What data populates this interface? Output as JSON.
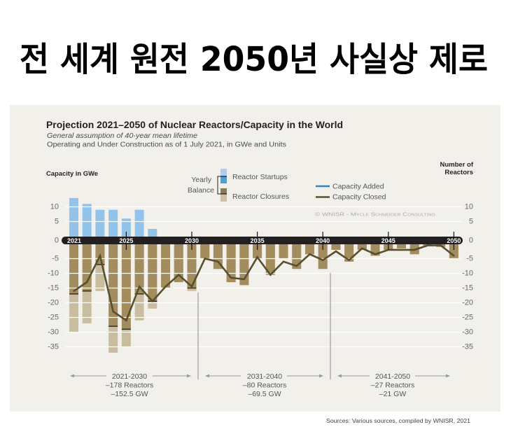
{
  "headline": "전 세계 원전 2050년 사실상 제로",
  "chart_data": {
    "type": "bar",
    "title": "Projection 2021–2050 of Nuclear Reactors/Capacity in the World",
    "subtitle": "General assumption of 40-year mean lifetime",
    "description": "Operating and Under Construction as of 1 July 2021, in GWe and Units",
    "ylabel_left": "Capacity in GWe",
    "ylabel_right": [
      "Number of",
      "Reactors"
    ],
    "ylim": [
      -37,
      13
    ],
    "grid": true,
    "yticks": [
      10,
      5,
      0,
      -5,
      -10,
      -15,
      -20,
      -25,
      -30,
      -35
    ],
    "x": [
      2021,
      2022,
      2023,
      2024,
      2025,
      2026,
      2027,
      2028,
      2029,
      2030,
      2031,
      2032,
      2033,
      2034,
      2035,
      2036,
      2037,
      2038,
      2039,
      2040,
      2041,
      2042,
      2043,
      2044,
      2045,
      2046,
      2047,
      2048,
      2049,
      2050
    ],
    "xtick_labels": [
      "2021",
      "2025",
      "2030",
      "2035",
      "2040",
      "2045",
      "2050"
    ],
    "series": [
      {
        "name": "Reactor Startups",
        "type": "bar",
        "values": [
          13,
          11,
          9,
          9,
          6,
          9,
          2.5,
          0,
          0,
          0,
          0,
          0,
          0,
          0,
          0,
          0,
          0,
          0,
          0,
          0,
          0,
          0,
          0,
          0,
          0,
          0,
          0,
          0,
          0,
          0
        ]
      },
      {
        "name": "Reactor Closures",
        "type": "bar",
        "values": [
          -30,
          -27,
          -16,
          -37,
          -35,
          -26,
          -22,
          -15,
          -13,
          -16,
          -5,
          -8.5,
          -13,
          -14,
          -5,
          -10.5,
          -5,
          -8.5,
          -3.5,
          -8.5,
          -2,
          -6,
          -2,
          -4,
          -2,
          -1.5,
          -3.5,
          -0.5,
          -1,
          -5
        ]
      },
      {
        "name": [
          "Yearly",
          "Balance"
        ],
        "type": "bar",
        "values": [
          -17,
          -16,
          -7,
          -28,
          -29,
          -17,
          -19.5,
          -15,
          -13,
          -15,
          -5,
          -8.5,
          -13,
          -14,
          -5,
          -10.5,
          -5,
          -8.5,
          -3.5,
          -8.5,
          -2,
          -6,
          -2,
          -4,
          -2,
          -1.5,
          -3.5,
          -0.5,
          -1,
          -5
        ]
      },
      {
        "name": "Capacity Closed",
        "type": "line",
        "values": [
          -16,
          -13,
          -4,
          -23,
          -26,
          -14.5,
          -19.5,
          -14.5,
          -10.5,
          -14.5,
          -5,
          -6,
          -11.5,
          -12,
          -4.5,
          -10.5,
          -6,
          -7.5,
          -3.5,
          -5.5,
          -2.5,
          -5.5,
          -1.5,
          -3.5,
          -2,
          -2,
          -2,
          -0.5,
          -0.5,
          -4
        ]
      }
    ],
    "legend": {
      "capacity_added": "Capacity Added",
      "placement": "top"
    },
    "copyright": "© WNISR - Mycle Schneider Consulting",
    "periods": [
      {
        "range": "2021-2030",
        "reactors": "–178 Reactors",
        "capacity": "–152.5 GW"
      },
      {
        "range": "2031-2040",
        "reactors": "–80 Reactors",
        "capacity": "–69.5 GW"
      },
      {
        "range": "2041-2050",
        "reactors": "–27 Reactors",
        "capacity": "–21 GW"
      }
    ],
    "colors": {
      "startups": "#92c3ea",
      "closures": "#c9bd9f",
      "balance": "#a38d5f",
      "capacity_closed": "#57502c",
      "capacity_added": "#2e86c1",
      "band": "#231f20",
      "panel": "#f2f0eb"
    }
  },
  "source": "Sources: Various sources, compiled by WNISR, 2021"
}
